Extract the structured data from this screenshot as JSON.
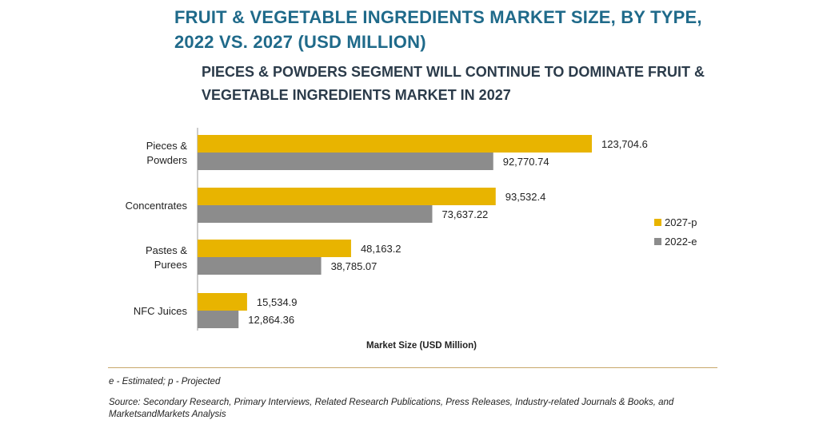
{
  "title": "FRUIT & VEGETABLE INGREDIENTS MARKET SIZE, BY TYPE, 2022 VS. 2027 (USD MILLION)",
  "subtitle": "PIECES & POWDERS SEGMENT WILL CONTINUE TO DOMINATE FRUIT & VEGETABLE INGREDIENTS MARKET IN 2027",
  "note": "e - Estimated; p - Projected",
  "source": "Source: Secondary Research, Primary Interviews, Related Research Publications, Press Releases, Industry-related Journals & Books, and MarketsandMarkets Analysis",
  "chart_data": {
    "type": "bar",
    "orientation": "horizontal",
    "categories": [
      "Pieces & Powders",
      "Concentrates",
      "Pastes & Purees",
      "NFC Juices"
    ],
    "category_lines": [
      [
        "Pieces &",
        "Powders"
      ],
      [
        "Concentrates"
      ],
      [
        "Pastes &",
        "Purees"
      ],
      [
        "NFC Juices"
      ]
    ],
    "series": [
      {
        "name": "2027-p",
        "color": "#e8b400",
        "values": [
          123704.6,
          93532.4,
          48163.2,
          15534.9
        ],
        "labels": [
          "123,704.6",
          "93,532.4",
          "48,163.2",
          "15,534.9"
        ]
      },
      {
        "name": "2022-e",
        "color": "#8c8c8c",
        "values": [
          92770.74,
          73637.22,
          38785.07,
          12864.36
        ],
        "labels": [
          "92,770.74",
          "73,637.22",
          "38,785.07",
          "12,864.36"
        ]
      }
    ],
    "xlabel": "Market Size (USD Million)",
    "ylabel": "",
    "legend_position": "right",
    "grid": false
  }
}
